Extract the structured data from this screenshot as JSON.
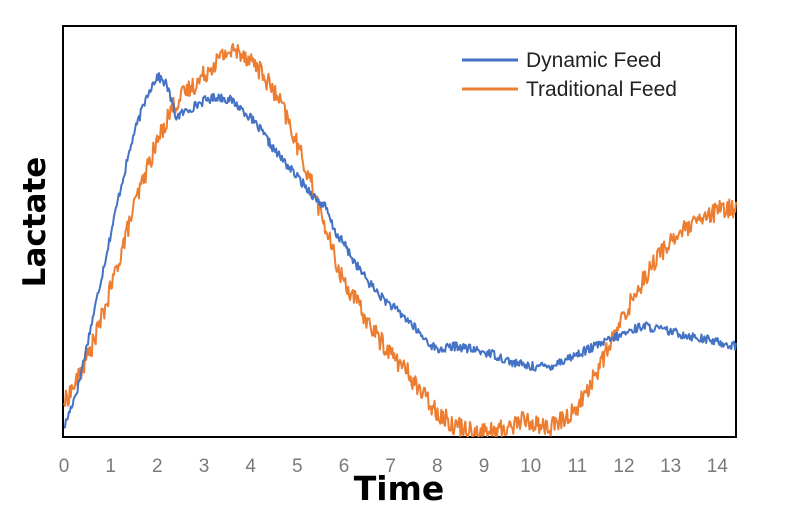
{
  "chart_data": {
    "type": "line",
    "title": "",
    "xlabel": "Time",
    "ylabel": "Lactate",
    "xlim": [
      0,
      14.4
    ],
    "ylim": [
      0,
      100
    ],
    "x_ticks": [
      0,
      1,
      2,
      3,
      4,
      5,
      6,
      7,
      8,
      9,
      10,
      11,
      12,
      13,
      14
    ],
    "y_tick_labels_shown": false,
    "grid": false,
    "legend_position": "top-right",
    "series": [
      {
        "name": "Dynamic Feed",
        "color": "#4472C4",
        "x": [
          0,
          0.3,
          0.6,
          0.9,
          1.2,
          1.5,
          1.8,
          2.0,
          2.2,
          2.4,
          2.7,
          3.0,
          3.3,
          3.6,
          3.9,
          4.2,
          4.5,
          4.8,
          5.1,
          5.4,
          5.6,
          5.8,
          6.0,
          6.2,
          6.5,
          6.8,
          7.1,
          7.4,
          7.7,
          8.0,
          8.4,
          8.8,
          9.2,
          9.6,
          10.0,
          10.4,
          10.8,
          11.2,
          11.6,
          12.0,
          12.4,
          12.8,
          13.2,
          13.6,
          14.0,
          14.4
        ],
        "values": [
          2,
          12,
          28,
          44,
          60,
          74,
          84,
          88,
          86,
          78,
          80,
          82,
          83,
          82,
          79,
          75,
          70,
          66,
          62,
          58,
          56,
          50,
          47,
          43,
          38,
          34,
          31,
          28,
          24,
          21,
          22,
          21,
          20,
          18,
          17,
          17,
          19,
          21,
          23,
          25,
          27,
          26,
          25,
          24,
          23,
          22
        ]
      },
      {
        "name": "Traditional Feed",
        "color": "#ED7D31",
        "x": [
          0,
          0.3,
          0.6,
          0.9,
          1.2,
          1.5,
          1.8,
          2.0,
          2.3,
          2.6,
          2.9,
          3.2,
          3.5,
          3.8,
          4.1,
          4.4,
          4.7,
          5.0,
          5.3,
          5.6,
          5.9,
          6.2,
          6.5,
          6.8,
          7.1,
          7.4,
          7.7,
          8.0,
          8.3,
          8.6,
          8.9,
          9.2,
          9.5,
          9.8,
          10.1,
          10.4,
          10.7,
          11.0,
          11.3,
          11.6,
          11.9,
          12.2,
          12.5,
          12.8,
          13.1,
          13.4,
          13.7,
          14.0,
          14.4
        ],
        "values": [
          8,
          14,
          22,
          32,
          44,
          56,
          66,
          72,
          80,
          84,
          87,
          91,
          94,
          94,
          91,
          86,
          80,
          71,
          62,
          51,
          40,
          34,
          28,
          23,
          19,
          15,
          10,
          6,
          3,
          2,
          1,
          1,
          2,
          4,
          3,
          2,
          4,
          7,
          13,
          20,
          27,
          34,
          40,
          45,
          49,
          51,
          53,
          55,
          56
        ]
      }
    ]
  }
}
